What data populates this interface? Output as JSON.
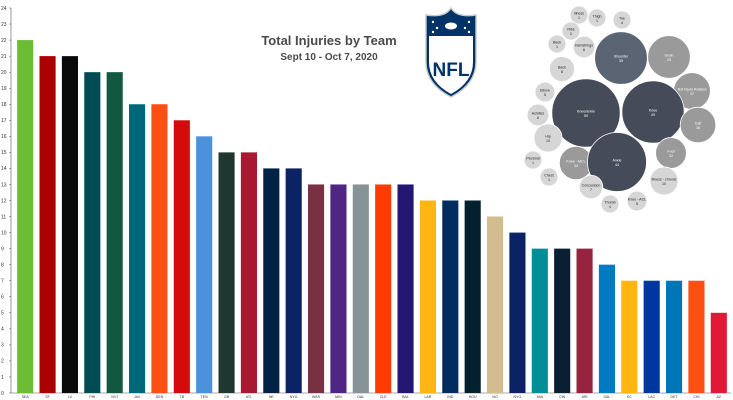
{
  "colors": {
    "background": "#ffffff",
    "axis": "#555555",
    "logo_blue": "#013369",
    "logo_red": "#d50a0a",
    "bubble_light": "#d6d6d6",
    "bubble_mid": "#9a9a9a",
    "bubble_dark": "#5a6473",
    "bubble_darkest": "#454b58"
  },
  "logo": {
    "text": "NFL"
  },
  "chart_data": [
    {
      "type": "bar",
      "title": "Total Injuries by Team",
      "subtitle": "Sept 10 - Oct 7, 2020",
      "xlabel": "",
      "ylabel": "",
      "ylim": [
        0,
        24
      ],
      "y_ticks": [
        0,
        1,
        2,
        3,
        4,
        5,
        6,
        7,
        8,
        9,
        10,
        11,
        12,
        13,
        14,
        15,
        16,
        17,
        18,
        19,
        20,
        21,
        22,
        23,
        24
      ],
      "grid": false,
      "categories": [
        "SEA",
        "SF",
        "LV",
        "PHI",
        "NYJ",
        "JAX",
        "DEN",
        "TB",
        "TEN",
        "GB",
        "ATL",
        "NE",
        "NYG",
        "WAS",
        "MIN",
        "DAL",
        "CLE",
        "BAL",
        "LAR",
        "IND",
        "HOU",
        "NO",
        "NYG",
        "MIA",
        "CIN",
        "ARI",
        "DAL",
        "KC",
        "LAC",
        "DET",
        "CHI",
        "AZ"
      ],
      "values": [
        22,
        21,
        21,
        20,
        20,
        18,
        18,
        17,
        16,
        15,
        15,
        14,
        14,
        13,
        13,
        13,
        13,
        13,
        12,
        12,
        12,
        11,
        10,
        9,
        9,
        9,
        8,
        7,
        7,
        7,
        7,
        5
      ],
      "colors": [
        "#6cbd33",
        "#aa0000",
        "#0a0a0a",
        "#004c54",
        "#125740",
        "#006778",
        "#fb4f14",
        "#d50a0a",
        "#4b92db",
        "#203731",
        "#a71930",
        "#002244",
        "#0b2265",
        "#773141",
        "#4f2683",
        "#869397",
        "#ff3c00",
        "#241773",
        "#ffb612",
        "#002c5f",
        "#03202f",
        "#d3bc8d",
        "#0b2265",
        "#008e97",
        "#0a1f33",
        "#97233f",
        "#007ac2",
        "#ffb612",
        "#0036a0",
        "#0076b6",
        "#fb4f14",
        "#e31837"
      ]
    },
    {
      "type": "bubble",
      "title": "",
      "items": [
        {
          "label": "Illness",
          "value": 1
        },
        {
          "label": "Ribs",
          "value": 2
        },
        {
          "label": "Thigh",
          "value": 1
        },
        {
          "label": "Toe",
          "value": 4
        },
        {
          "label": "Back",
          "value": 1
        },
        {
          "label": "Hamstrings",
          "value": 6
        },
        {
          "label": "Shoulder",
          "value": 35
        },
        {
          "label": "Groin",
          "value": 23
        },
        {
          "label": "Back",
          "value": 8
        },
        {
          "label": "Elbow",
          "value": 5
        },
        {
          "label": "Not Injury Related",
          "value": 17
        },
        {
          "label": "Knee/ankle",
          "value": 59
        },
        {
          "label": "Knee",
          "value": 49
        },
        {
          "label": "Achilles",
          "value": 6
        },
        {
          "label": "Calf",
          "value": 16
        },
        {
          "label": "Hip",
          "value": 10
        },
        {
          "label": "Foot",
          "value": 12
        },
        {
          "label": "Pectoral",
          "value": 1
        },
        {
          "label": "Knee - MCL",
          "value": 14
        },
        {
          "label": "Ankle",
          "value": 44
        },
        {
          "label": "Illness - chronic",
          "value": 10
        },
        {
          "label": "Chest",
          "value": 1
        },
        {
          "label": "Concussion",
          "value": 7
        },
        {
          "label": "Thumb",
          "value": 4
        },
        {
          "label": "Knee - ACL",
          "value": 5
        }
      ]
    }
  ]
}
